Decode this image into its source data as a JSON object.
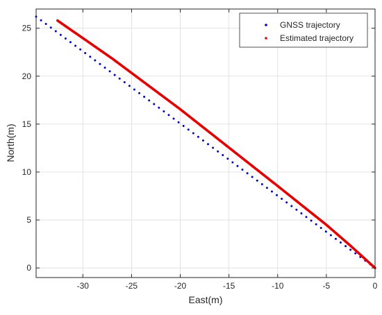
{
  "chart_data": {
    "type": "scatter",
    "title": "",
    "xlabel": "East(m)",
    "ylabel": "North(m)",
    "xlim": [
      -34.8,
      0
    ],
    "ylim": [
      -1,
      27
    ],
    "xticks": [
      -30,
      -25,
      -20,
      -15,
      -10,
      -5,
      0
    ],
    "yticks": [
      0,
      5,
      10,
      15,
      20,
      25
    ],
    "xtick_labels": [
      "-30",
      "-25",
      "-20",
      "-15",
      "-10",
      "-5",
      "0"
    ],
    "ytick_labels": [
      "0",
      "5",
      "10",
      "15",
      "20",
      "25"
    ],
    "grid": true,
    "legend_position": "top-right",
    "series": [
      {
        "name": "GNSS trajectory",
        "color": "#0000cc",
        "marker": "dot",
        "start": [
          -34.8,
          26.2
        ],
        "end": [
          0,
          0
        ],
        "points": 70
      },
      {
        "name": "Estimated trajectory",
        "color": "#e60000",
        "marker": "dot-dense",
        "path": [
          [
            -32.6,
            25.8
          ],
          [
            -27.0,
            21.85
          ],
          [
            -20.0,
            16.55
          ],
          [
            -15.0,
            12.55
          ],
          [
            -10.0,
            8.55
          ],
          [
            -5.0,
            4.5
          ],
          [
            -2.5,
            2.3
          ],
          [
            0.0,
            0.0
          ]
        ],
        "points": 420
      }
    ]
  }
}
